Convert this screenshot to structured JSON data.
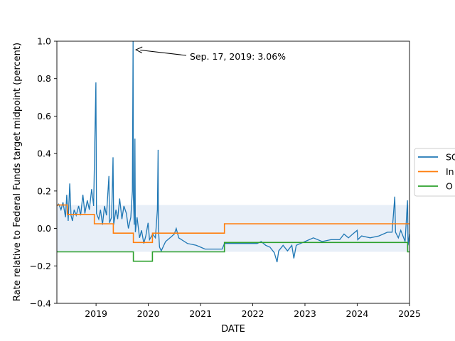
{
  "chart_data": {
    "type": "line",
    "xlabel": "DATE",
    "ylabel": "Rate relative to Federal Funds target midpoint (percent)",
    "xlim": [
      "2018-04-02",
      "2025-01-01"
    ],
    "ylim": [
      -0.4,
      1.0
    ],
    "y_ticks": [
      "−0.4",
      "−0.2",
      "0.0",
      "0.2",
      "0.4",
      "0.6",
      "0.8",
      "1.0"
    ],
    "x_ticks": [
      "2019",
      "2020",
      "2021",
      "2022",
      "2023",
      "2024",
      "2025"
    ],
    "grid": false,
    "legend_placement": "right",
    "annotation": {
      "text": "Sep. 17, 2019: 3.06%",
      "x": "2019-09-17",
      "y": 1.0
    },
    "band": {
      "name": "target range",
      "y_low": -0.125,
      "y_high": 0.125,
      "color": "#e8eff8"
    },
    "series": [
      {
        "name": "SO",
        "color": "#1f77b4",
        "step": false,
        "points": [
          [
            "2018-04-02",
            0.12
          ],
          [
            "2018-04-15",
            0.13
          ],
          [
            "2018-05-01",
            0.1
          ],
          [
            "2018-05-15",
            0.14
          ],
          [
            "2018-06-01",
            0.06
          ],
          [
            "2018-06-10",
            0.18
          ],
          [
            "2018-06-20",
            0.04
          ],
          [
            "2018-07-01",
            0.24
          ],
          [
            "2018-07-10",
            0.07
          ],
          [
            "2018-07-20",
            0.04
          ],
          [
            "2018-08-01",
            0.1
          ],
          [
            "2018-08-15",
            0.07
          ],
          [
            "2018-09-01",
            0.12
          ],
          [
            "2018-09-15",
            0.07
          ],
          [
            "2018-10-01",
            0.18
          ],
          [
            "2018-10-15",
            0.08
          ],
          [
            "2018-11-01",
            0.15
          ],
          [
            "2018-11-15",
            0.1
          ],
          [
            "2018-12-01",
            0.21
          ],
          [
            "2018-12-15",
            0.12
          ],
          [
            "2018-12-31",
            0.78
          ],
          [
            "2019-01-04",
            0.08
          ],
          [
            "2019-01-20",
            0.05
          ],
          [
            "2019-02-01",
            0.1
          ],
          [
            "2019-02-15",
            0.02
          ],
          [
            "2019-03-01",
            0.12
          ],
          [
            "2019-03-15",
            0.07
          ],
          [
            "2019-04-01",
            0.28
          ],
          [
            "2019-04-05",
            0.03
          ],
          [
            "2019-04-20",
            0.06
          ],
          [
            "2019-04-30",
            0.38
          ],
          [
            "2019-05-04",
            0.02
          ],
          [
            "2019-05-20",
            0.1
          ],
          [
            "2019-06-01",
            0.05
          ],
          [
            "2019-06-15",
            0.16
          ],
          [
            "2019-07-01",
            0.05
          ],
          [
            "2019-07-15",
            0.12
          ],
          [
            "2019-08-01",
            0.08
          ],
          [
            "2019-08-15",
            0.0
          ],
          [
            "2019-09-01",
            0.06
          ],
          [
            "2019-09-12",
            0.2
          ],
          [
            "2019-09-17",
            1.0
          ],
          [
            "2019-09-19",
            0.18
          ],
          [
            "2019-09-25",
            0.02
          ],
          [
            "2019-09-30",
            0.48
          ],
          [
            "2019-10-03",
            -0.02
          ],
          [
            "2019-10-15",
            0.06
          ],
          [
            "2019-11-01",
            -0.05
          ],
          [
            "2019-11-15",
            -0.01
          ],
          [
            "2019-12-01",
            -0.08
          ],
          [
            "2019-12-15",
            -0.04
          ],
          [
            "2019-12-31",
            0.03
          ],
          [
            "2020-01-10",
            -0.06
          ],
          [
            "2020-02-01",
            -0.03
          ],
          [
            "2020-02-20",
            -0.05
          ],
          [
            "2020-03-05",
            0.1
          ],
          [
            "2020-03-10",
            0.42
          ],
          [
            "2020-03-12",
            0.0
          ],
          [
            "2020-03-20",
            -0.1
          ],
          [
            "2020-04-01",
            -0.12
          ],
          [
            "2020-05-01",
            -0.07
          ],
          [
            "2020-06-01",
            -0.05
          ],
          [
            "2020-07-01",
            -0.03
          ],
          [
            "2020-07-15",
            0.0
          ],
          [
            "2020-08-01",
            -0.05
          ],
          [
            "2020-10-01",
            -0.08
          ],
          [
            "2020-12-01",
            -0.09
          ],
          [
            "2021-01-01",
            -0.1
          ],
          [
            "2021-02-01",
            -0.11
          ],
          [
            "2021-06-01",
            -0.11
          ],
          [
            "2021-06-17",
            -0.08
          ],
          [
            "2021-08-01",
            -0.08
          ],
          [
            "2021-12-01",
            -0.08
          ],
          [
            "2022-02-01",
            -0.08
          ],
          [
            "2022-03-01",
            -0.07
          ],
          [
            "2022-04-01",
            -0.09
          ],
          [
            "2022-05-01",
            -0.1
          ],
          [
            "2022-06-01",
            -0.13
          ],
          [
            "2022-06-20",
            -0.18
          ],
          [
            "2022-07-01",
            -0.12
          ],
          [
            "2022-08-01",
            -0.09
          ],
          [
            "2022-09-01",
            -0.12
          ],
          [
            "2022-10-01",
            -0.09
          ],
          [
            "2022-10-15",
            -0.16
          ],
          [
            "2022-11-01",
            -0.09
          ],
          [
            "2022-12-01",
            -0.08
          ],
          [
            "2023-01-01",
            -0.07
          ],
          [
            "2023-03-01",
            -0.05
          ],
          [
            "2023-05-01",
            -0.07
          ],
          [
            "2023-07-01",
            -0.06
          ],
          [
            "2023-09-01",
            -0.06
          ],
          [
            "2023-10-01",
            -0.03
          ],
          [
            "2023-11-01",
            -0.05
          ],
          [
            "2023-12-01",
            -0.03
          ],
          [
            "2024-01-01",
            -0.01
          ],
          [
            "2024-01-05",
            -0.06
          ],
          [
            "2024-02-01",
            -0.04
          ],
          [
            "2024-04-01",
            -0.05
          ],
          [
            "2024-06-01",
            -0.04
          ],
          [
            "2024-07-01",
            -0.03
          ],
          [
            "2024-08-01",
            -0.02
          ],
          [
            "2024-09-01",
            -0.02
          ],
          [
            "2024-09-20",
            0.17
          ],
          [
            "2024-09-25",
            -0.02
          ],
          [
            "2024-10-15",
            -0.05
          ],
          [
            "2024-11-01",
            -0.01
          ],
          [
            "2024-12-01",
            -0.07
          ],
          [
            "2024-12-18",
            0.15
          ],
          [
            "2024-12-22",
            -0.09
          ],
          [
            "2025-01-01",
            -0.03
          ]
        ]
      },
      {
        "name": "In",
        "color": "#ff7f0e",
        "step": true,
        "points": [
          [
            "2018-04-02",
            0.125
          ],
          [
            "2018-06-14",
            0.075
          ],
          [
            "2018-12-20",
            0.025
          ],
          [
            "2019-05-02",
            -0.025
          ],
          [
            "2019-08-01",
            -0.025
          ],
          [
            "2019-09-19",
            -0.075
          ],
          [
            "2019-10-31",
            -0.075
          ],
          [
            "2020-01-30",
            -0.025
          ],
          [
            "2020-03-16",
            -0.025
          ],
          [
            "2021-06-17",
            0.025
          ],
          [
            "2025-01-01",
            0.025
          ]
        ]
      },
      {
        "name": "O",
        "color": "#2ca02c",
        "step": true,
        "points": [
          [
            "2018-04-02",
            -0.125
          ],
          [
            "2019-09-19",
            -0.175
          ],
          [
            "2020-01-30",
            -0.125
          ],
          [
            "2021-06-17",
            -0.075
          ],
          [
            "2024-12-19",
            -0.125
          ],
          [
            "2025-01-01",
            -0.125
          ]
        ]
      }
    ]
  }
}
